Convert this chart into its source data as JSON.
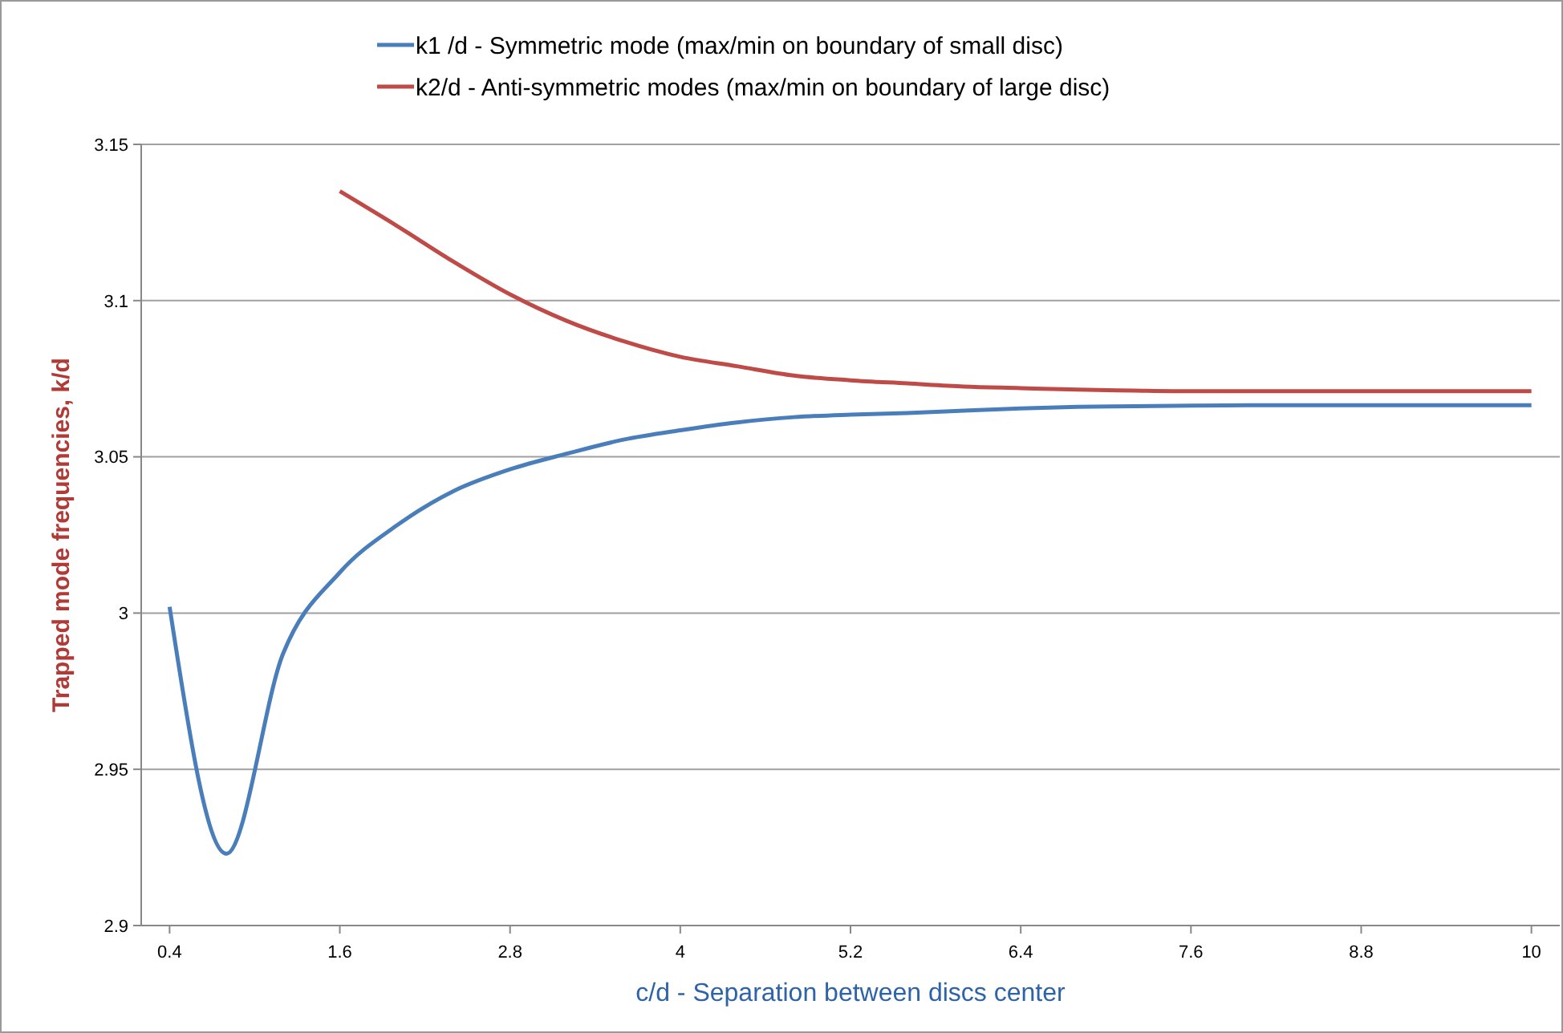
{
  "chart_data": {
    "type": "line",
    "xlabel": "c/d - Separation between discs center",
    "ylabel": "Trapped mode frequencies, k/d",
    "x": [
      0.4,
      0.8,
      1.2,
      1.6,
      2.0,
      2.4,
      2.8,
      3.2,
      3.6,
      4.0,
      4.4,
      4.8,
      5.2,
      5.6,
      6.0,
      6.4,
      6.8,
      7.2,
      7.6,
      8.0,
      8.4,
      8.8,
      9.2,
      9.6,
      10.0
    ],
    "series": [
      {
        "name": "k1 /d - Symmetric mode (max/min on boundary of small disc)",
        "color": "#4a7ebb",
        "values": [
          3.002,
          2.923,
          2.987,
          3.013,
          3.028,
          3.039,
          3.046,
          3.051,
          3.0555,
          3.0585,
          3.061,
          3.0627,
          3.0635,
          3.064,
          3.0648,
          3.0655,
          3.066,
          3.0662,
          3.0664,
          3.0665,
          3.0665,
          3.0665,
          3.0665,
          3.0665,
          3.0665
        ]
      },
      {
        "name": "k2/d - Anti-symmetric modes (max/min on boundary of large disc)",
        "color": "#be4b48",
        "values": [
          null,
          null,
          null,
          3.135,
          3.124,
          3.1125,
          3.102,
          3.0935,
          3.087,
          3.082,
          3.079,
          3.076,
          3.0745,
          3.0735,
          3.0725,
          3.072,
          3.0715,
          3.0712,
          3.071,
          3.071,
          3.071,
          3.071,
          3.071,
          3.071,
          3.071
        ]
      }
    ],
    "xlim": [
      0.2,
      10.2
    ],
    "xticks": [
      0.4,
      1.6,
      2.8,
      4,
      5.2,
      6.4,
      7.6,
      8.8,
      10
    ],
    "ylim": [
      2.9,
      3.15
    ],
    "yticks": [
      2.9,
      2.95,
      3,
      3.05,
      3.1,
      3.15
    ],
    "grid": "y",
    "legend": "top",
    "marker": "none",
    "line_style": "solid"
  }
}
